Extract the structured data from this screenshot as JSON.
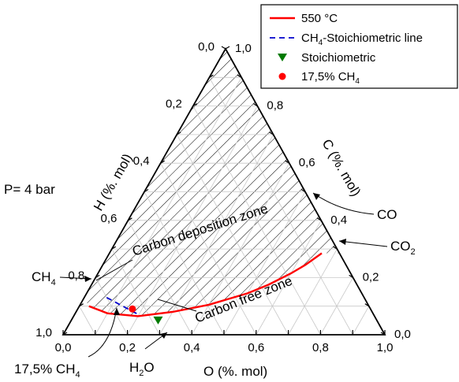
{
  "chart_data": {
    "type": "ternary",
    "axes": {
      "bottom": {
        "label": "O (%. mol)",
        "ticks": [
          "0,0",
          "0,2",
          "0,4",
          "0,6",
          "0,8",
          "1,0"
        ]
      },
      "left": {
        "label": "H (%. mol)",
        "ticks": [
          "0,0",
          "0,2",
          "0,4",
          "0,6",
          "0,8",
          "1,0"
        ]
      },
      "right": {
        "label": "C (%. mol)",
        "ticks": [
          "0,0",
          "0,2",
          "0,4",
          "0,6",
          "0,8",
          "1,0"
        ]
      }
    },
    "legend": {
      "placement": "top-right",
      "entries": [
        {
          "label": "550 °C",
          "style": "solid-line",
          "color": "#ff0000"
        },
        {
          "label_main": "CH",
          "label_sub": "4",
          "label_rest": "-Stoichiometric line",
          "style": "dashed-line",
          "color": "#0000cc"
        },
        {
          "label": "Stoichiometric",
          "style": "down-triangle",
          "color": "#007a00"
        },
        {
          "label_main": "17,5% CH",
          "label_sub": "4",
          "style": "circle",
          "color": "#ff0000"
        }
      ]
    },
    "annotations": {
      "pressure": "P= 4 bar",
      "carbon_deposition_zone": "Carbon deposition zone",
      "carbon_free_zone": "Carbon free zone",
      "co": {
        "main": "CO",
        "sub": ""
      },
      "co2": {
        "main": "CO",
        "sub": "2"
      },
      "ch4": {
        "main": "CH",
        "sub": "4"
      },
      "h2o": {
        "main": "H",
        "sub": "2",
        "rest": "O"
      },
      "ch4_175": {
        "main": "17,5% CH",
        "sub": "4"
      }
    },
    "series": [
      {
        "name": "550 °C",
        "type": "line",
        "points": [
          {
            "O": 0.03,
            "C": 0.1
          },
          {
            "O": 0.1,
            "C": 0.075
          },
          {
            "O": 0.2,
            "C": 0.065
          },
          {
            "O": 0.3,
            "C": 0.08
          },
          {
            "O": 0.4,
            "C": 0.105
          },
          {
            "O": 0.5,
            "C": 0.145
          },
          {
            "O": 0.55,
            "C": 0.175
          },
          {
            "O": 0.6,
            "C": 0.215
          },
          {
            "O": 0.63,
            "C": 0.245
          },
          {
            "O": 0.66,
            "C": 0.285
          }
        ]
      },
      {
        "name": "CH4-Stoichiometric line",
        "type": "dashed",
        "points": [
          {
            "O": 0.07,
            "C": 0.13
          },
          {
            "O": 0.2,
            "C": 0.07
          }
        ]
      },
      {
        "name": "Stoichiometric",
        "type": "point",
        "marker": "down-triangle",
        "points": [
          {
            "O": 0.27,
            "C": 0.05
          }
        ]
      },
      {
        "name": "17,5% CH4",
        "type": "point",
        "marker": "circle",
        "points": [
          {
            "O": 0.17,
            "C": 0.09
          }
        ]
      }
    ],
    "shaded_region": {
      "name": "Carbon deposition zone",
      "bounded_by": "550 °C curve and the C vertex",
      "pattern": "diagonal hatch"
    },
    "gridlines": true
  }
}
